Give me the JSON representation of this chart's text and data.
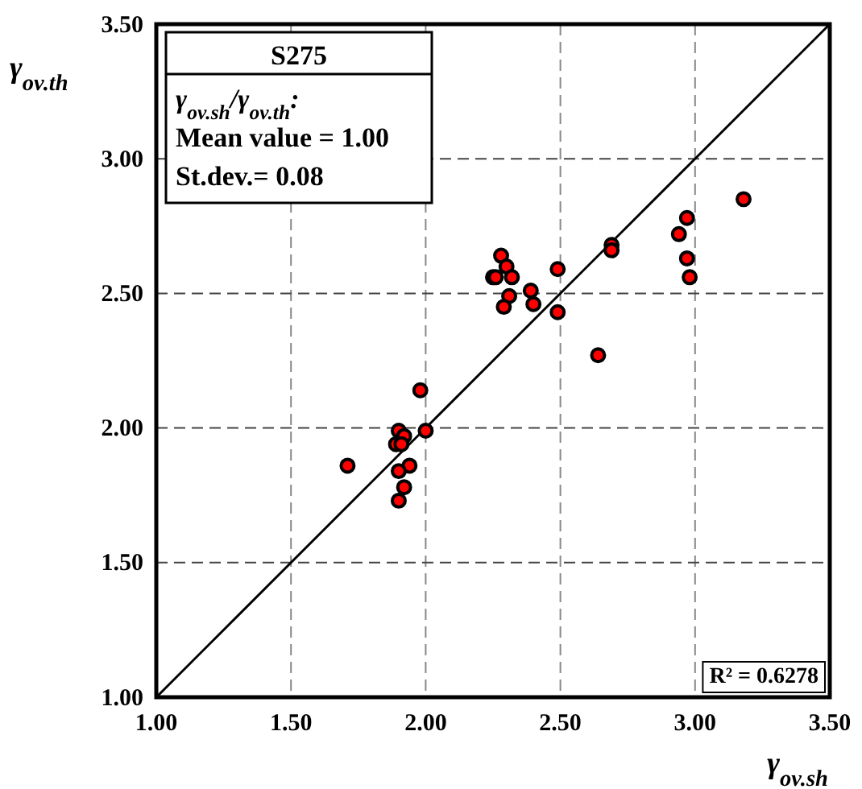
{
  "chart_data": {
    "type": "scatter",
    "xlabel": "γ$_{ov.sh}$",
    "ylabel": "γ$_{ov.th}$",
    "annotations": [
      "S275",
      "γ$_{ov.sh}$/γ$_{ov.th}$:",
      "Mean value = 1.00",
      "St.dev.= 0.08",
      "R² = 0.6278"
    ],
    "xlim": [
      1,
      3.5
    ],
    "ylim": [
      1,
      3.5
    ],
    "xticks": [
      {
        "value": 1,
        "label": "1.00"
      },
      {
        "value": 1.5,
        "label": "1.50"
      },
      {
        "value": 2,
        "label": "2.00"
      },
      {
        "value": 2.5,
        "label": "2.50"
      },
      {
        "value": 3,
        "label": "3.00"
      },
      {
        "value": 3.5,
        "label": "3.50"
      }
    ],
    "yticks": [
      {
        "value": 1,
        "label": "1.00"
      },
      {
        "value": 1.5,
        "label": "1.50"
      },
      {
        "value": 2,
        "label": "2.00"
      },
      {
        "value": 2.5,
        "label": "2.50"
      },
      {
        "value": 3,
        "label": "3.00"
      },
      {
        "value": 3.5,
        "label": "3.50"
      }
    ],
    "grid": true,
    "series": [
      {
        "type": "scatter",
        "marker": "circle",
        "color": "#ff0000",
        "x": [
          1.98,
          1.9,
          1.92,
          2.0,
          1.89,
          1.91,
          1.71,
          1.94,
          1.9,
          1.92,
          1.9,
          2.28,
          2.3,
          2.25,
          2.26,
          2.32,
          2.31,
          2.29,
          2.39,
          2.4,
          2.49,
          2.49,
          2.64,
          2.69,
          2.69,
          3.18,
          2.97,
          2.94,
          2.97,
          2.98
        ],
        "values": [
          2.14,
          1.99,
          1.97,
          1.99,
          1.94,
          1.94,
          1.86,
          1.86,
          1.84,
          1.78,
          1.73,
          2.64,
          2.6,
          2.56,
          2.56,
          2.56,
          2.49,
          2.45,
          2.51,
          2.46,
          2.59,
          2.43,
          2.27,
          2.68,
          2.66,
          2.85,
          2.78,
          2.72,
          2.63,
          2.56
        ]
      },
      {
        "type": "line",
        "color": "#000000",
        "x": [
          1,
          3.5
        ],
        "values": [
          1,
          3.5
        ],
        "marker": "none",
        "line_style": "solid"
      }
    ]
  }
}
